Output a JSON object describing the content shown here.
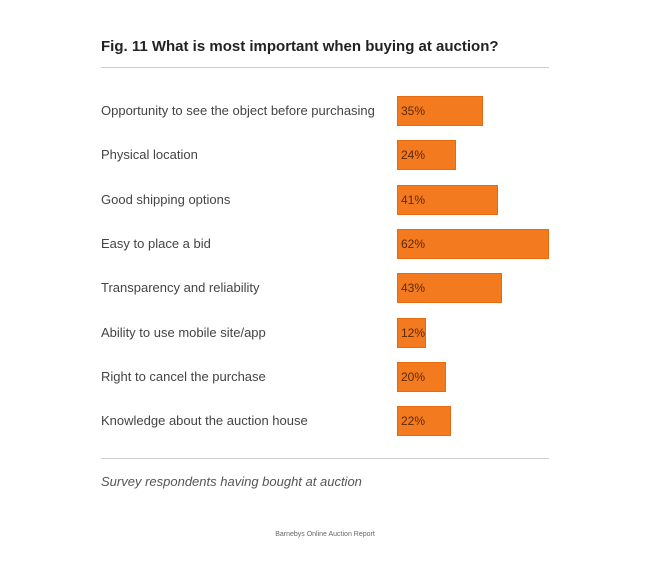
{
  "chart_data": {
    "type": "bar",
    "orientation": "horizontal",
    "title": "Fig. 11 What is most important when buying at auction?",
    "categories": [
      "Opportunity to see the object before purchasing",
      "Physical location",
      "Good shipping options",
      "Easy to place a bid",
      "Transparency and reliability",
      "Ability to use mobile site/app",
      "Right to cancel the purchase",
      "Knowledge about the auction house"
    ],
    "values": [
      35,
      24,
      41,
      62,
      43,
      12,
      20,
      22
    ],
    "value_labels": [
      "35%",
      "24%",
      "41%",
      "62%",
      "43%",
      "12%",
      "20%",
      "22%"
    ],
    "unit": "%",
    "xlim": [
      0,
      62
    ],
    "color": "#f47a1f",
    "grid": false,
    "legend": "none",
    "note": "Survey respondents having bought at auction"
  },
  "footer": {
    "source": "Barnebys Online Auction Report"
  }
}
